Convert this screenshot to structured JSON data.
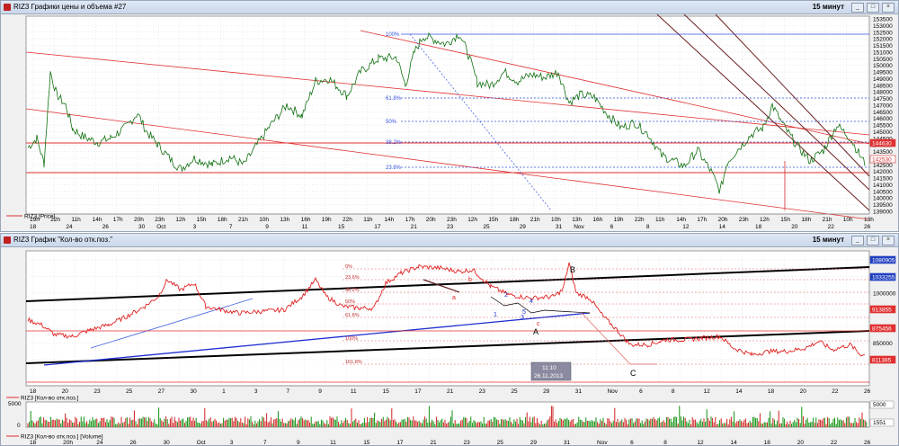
{
  "win1": {
    "title": "RIZ3 Графики цены и объема #27",
    "timeframe": "15 минут",
    "legend": "RIZ3 [Price]",
    "price_axis": [
      "153500",
      "153000",
      "152500",
      "152000",
      "151500",
      "151000",
      "150500",
      "150000",
      "149500",
      "149000",
      "148500",
      "148000",
      "147500",
      "147000",
      "146500",
      "146000",
      "145500",
      "145000",
      "144500",
      "144000",
      "143500",
      "143000",
      "142500",
      "142000",
      "141500",
      "141000",
      "140500",
      "140000",
      "139500",
      "139000"
    ],
    "price_tags": [
      "144630",
      "142530"
    ],
    "fib_labels": [
      "100%",
      "61.8%",
      "50%",
      "38.2%",
      "23.6%"
    ],
    "time_top": [
      "19h",
      "22h",
      "11h",
      "14h",
      "17h",
      "20h",
      "23h",
      "12h",
      "15h",
      "18h",
      "21h",
      "10h",
      "13h",
      "16h",
      "19h",
      "22h",
      "11h",
      "14h",
      "17h",
      "20h",
      "23h",
      "12h",
      "15h",
      "18h",
      "21h",
      "10h",
      "13h",
      "16h",
      "19h",
      "22h",
      "11h",
      "14h",
      "17h",
      "20h",
      "23h",
      "12h",
      "15h",
      "18h",
      "21h",
      "10h",
      "13h"
    ],
    "time_bottom": [
      "18",
      "",
      "24",
      "",
      "26",
      "",
      "30",
      "Oct",
      "",
      "3",
      "",
      "7",
      "",
      "9",
      "",
      "11",
      "",
      "15",
      "",
      "17",
      "",
      "21",
      "",
      "23",
      "",
      "25",
      "",
      "29",
      "",
      "31",
      "Nov",
      "",
      "6",
      "",
      "8",
      "",
      "12",
      "",
      "14",
      "",
      "18",
      "",
      "20",
      "",
      "22",
      "",
      "26"
    ]
  },
  "win2": {
    "title": "RIZ3 График \"Кол-во отк.поз.\"",
    "timeframe": "15 минут",
    "legend": "RIZ3 [Кол-во отк.поз.]",
    "legend2": "RIZ3 [Кол-во отк.поз.] [Volume]",
    "oi_axis": [
      "1100000",
      "1050000",
      "1000000",
      "950000",
      "900000",
      "850000",
      "800000"
    ],
    "oi_tags": [
      "1080905",
      "1033255",
      "913855",
      "875456",
      "811385"
    ],
    "fib_labels": [
      "0%",
      "23.6%",
      "38.2%",
      "50%",
      "61.8%",
      "100%",
      "161.8%"
    ],
    "wave_labels": [
      "B",
      "A",
      "C",
      "1",
      "2",
      "3",
      "4",
      "5",
      "c",
      "a",
      "b"
    ],
    "cursor_time": "11:10",
    "cursor_date": "26.11.2013",
    "vol_axis": [
      "5000",
      "0"
    ],
    "vol_tags": [
      "5000",
      "1551"
    ],
    "time_bottom": [
      "18",
      "20",
      "23",
      "25",
      "27",
      "30",
      "1",
      "3",
      "7",
      "9",
      "11",
      "15",
      "17",
      "21",
      "23",
      "25",
      "29",
      "31",
      "Nov",
      "6",
      "8",
      "12",
      "14",
      "18",
      "20",
      "22",
      "26"
    ],
    "time_bottom2": [
      "18",
      "20h",
      "24",
      "26",
      "30",
      "Oct",
      "3",
      "7",
      "9",
      "11",
      "15",
      "17",
      "21",
      "23",
      "25",
      "29",
      "31",
      "Nov",
      "6",
      "8",
      "12",
      "14",
      "18",
      "20",
      "22",
      "26"
    ]
  }
}
